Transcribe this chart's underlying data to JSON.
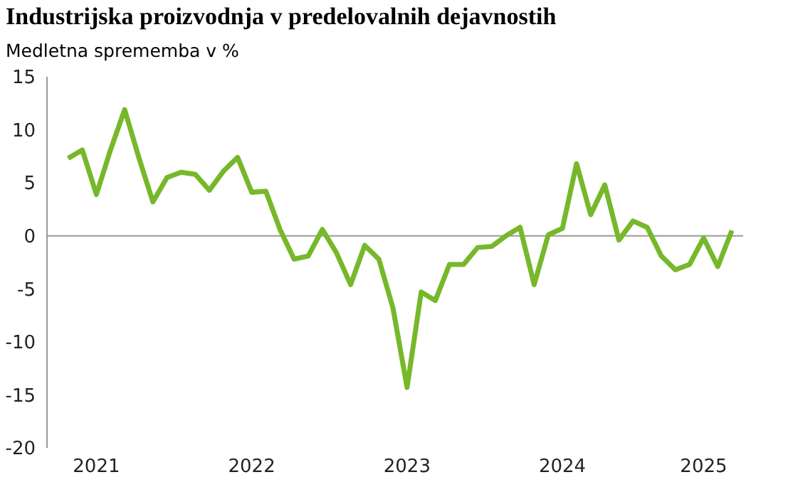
{
  "chart_data": {
    "type": "line",
    "title": "Industrijska proizvodnja v predelovalnih dejavnostih",
    "subtitle": "Medletna sprememba v %",
    "categories": [
      null,
      null,
      "2021",
      null,
      null,
      null,
      null,
      null,
      null,
      null,
      null,
      null,
      null,
      "2022",
      null,
      null,
      null,
      null,
      null,
      null,
      null,
      null,
      null,
      null,
      "2023",
      null,
      null,
      null,
      null,
      null,
      null,
      null,
      null,
      null,
      null,
      "2024",
      null,
      null,
      null,
      null,
      null,
      null,
      null,
      null,
      null,
      "2025",
      null,
      null
    ],
    "series": [
      {
        "color": "#76b82a",
        "values": [
          7.3,
          8.1,
          3.9,
          8.1,
          11.9,
          7.4,
          3.2,
          5.5,
          6.0,
          5.8,
          4.3,
          6.1,
          7.4,
          4.1,
          4.2,
          0.6,
          -2.2,
          -1.9,
          0.6,
          -1.6,
          -4.6,
          -0.9,
          -2.2,
          -6.8,
          -14.3,
          -5.3,
          -6.1,
          -2.7,
          -2.7,
          -1.1,
          -1.0,
          0.0,
          0.8,
          -4.6,
          0.1,
          0.7,
          6.8,
          2.0,
          4.8,
          -0.4,
          1.4,
          0.8,
          -1.9,
          -3.2,
          -2.7,
          -0.2,
          -2.9,
          0.5
        ]
      }
    ],
    "ylim": [
      -20,
      15
    ],
    "yticks": [
      -20,
      -15,
      -10,
      -5,
      0,
      5,
      10,
      15
    ],
    "marker": "none",
    "line_style": "solid",
    "ref_lines": [
      {
        "axis": "y",
        "value": 0,
        "color": "#999999"
      }
    ]
  }
}
